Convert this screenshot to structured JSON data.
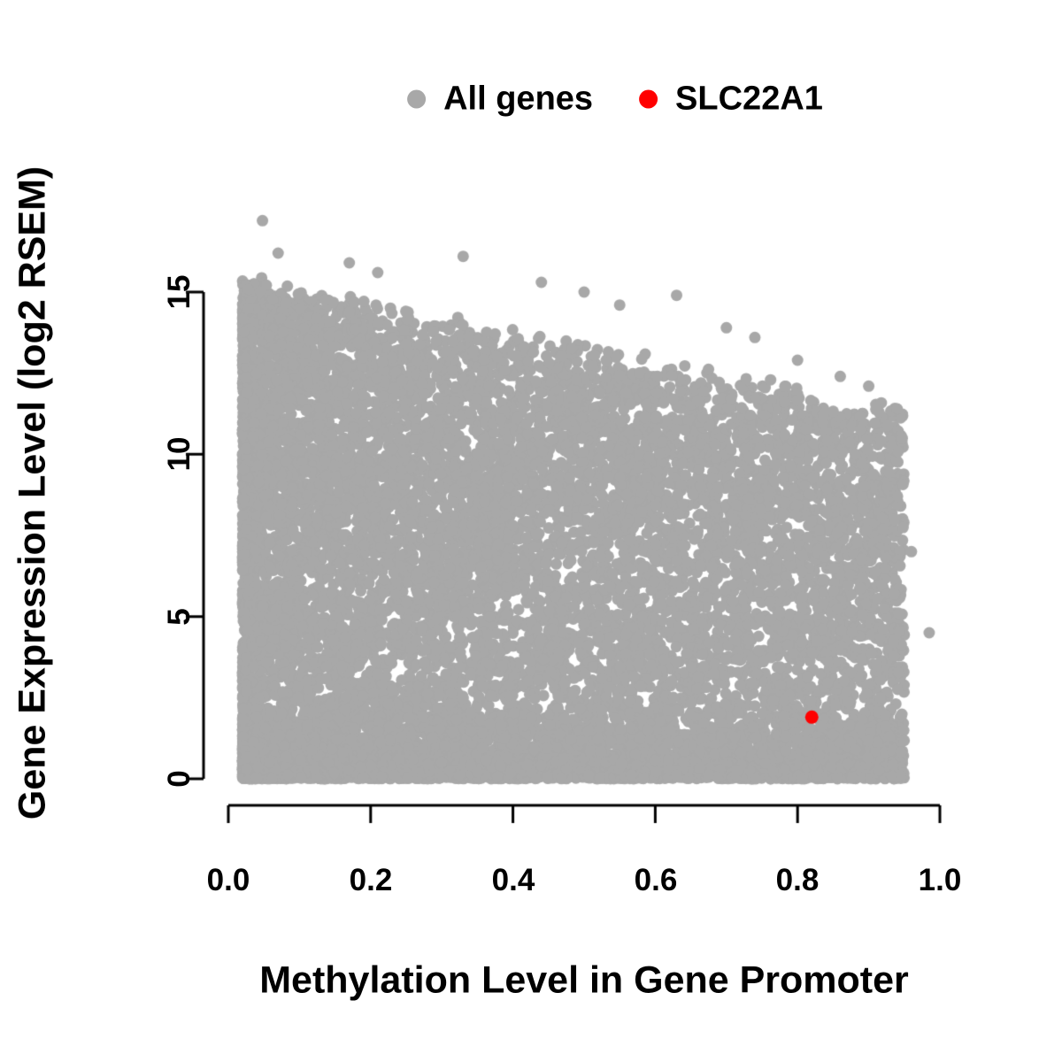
{
  "chart_data": {
    "type": "scatter",
    "title": "",
    "xlabel": "Methylation Level in Gene Promoter",
    "ylabel": "Gene Expression Level (log2 RSEM)",
    "xlim": [
      0.0,
      1.0
    ],
    "ylim": [
      0,
      17.5
    ],
    "grid": false,
    "legend_position": "top-center",
    "axis_color": "#000000",
    "x_ticks": [
      0.0,
      0.2,
      0.4,
      0.6,
      0.8,
      1.0
    ],
    "x_tick_labels": [
      "0.0",
      "0.2",
      "0.4",
      "0.6",
      "0.8",
      "1.0"
    ],
    "y_ticks": [
      0,
      5,
      10,
      15
    ],
    "y_tick_labels": [
      "0",
      "5",
      "10",
      "15"
    ],
    "legend": [
      {
        "label": "All genes",
        "color": "#A8A8A8"
      },
      {
        "label": "SLC22A1",
        "color": "#FF0000"
      }
    ],
    "series": [
      {
        "name": "All genes",
        "color": "#A8A8A8",
        "marker_radius_px": 6.5,
        "generator": {
          "seed": 20240613,
          "n": 13000,
          "x_min": 0.02,
          "x_range": 0.93,
          "x_power_main": 1.7,
          "x_power_tail": 0.8,
          "tail_fraction": 0.2,
          "envelope_intercept": 15.2,
          "envelope_slope": -4.4,
          "envelope_noise": 0.5,
          "bottom_fraction": 0.28,
          "bottom_scale": 2.4,
          "y_power": 0.8,
          "y_max": 17.4
        },
        "extra_points": [
          [
            0.048,
            17.2
          ],
          [
            0.07,
            16.2
          ],
          [
            0.17,
            15.9
          ],
          [
            0.21,
            15.6
          ],
          [
            0.33,
            16.1
          ],
          [
            0.44,
            15.3
          ],
          [
            0.5,
            15.0
          ],
          [
            0.55,
            14.6
          ],
          [
            0.63,
            14.9
          ],
          [
            0.7,
            13.9
          ],
          [
            0.74,
            13.6
          ],
          [
            0.8,
            12.9
          ],
          [
            0.86,
            12.4
          ],
          [
            0.9,
            12.1
          ],
          [
            0.94,
            11.4
          ],
          [
            0.96,
            7.0
          ],
          [
            0.985,
            4.5
          ]
        ]
      },
      {
        "name": "SLC22A1",
        "color": "#FF0000",
        "marker_radius_px": 7.5,
        "points": [
          [
            0.82,
            1.9
          ]
        ]
      }
    ]
  }
}
